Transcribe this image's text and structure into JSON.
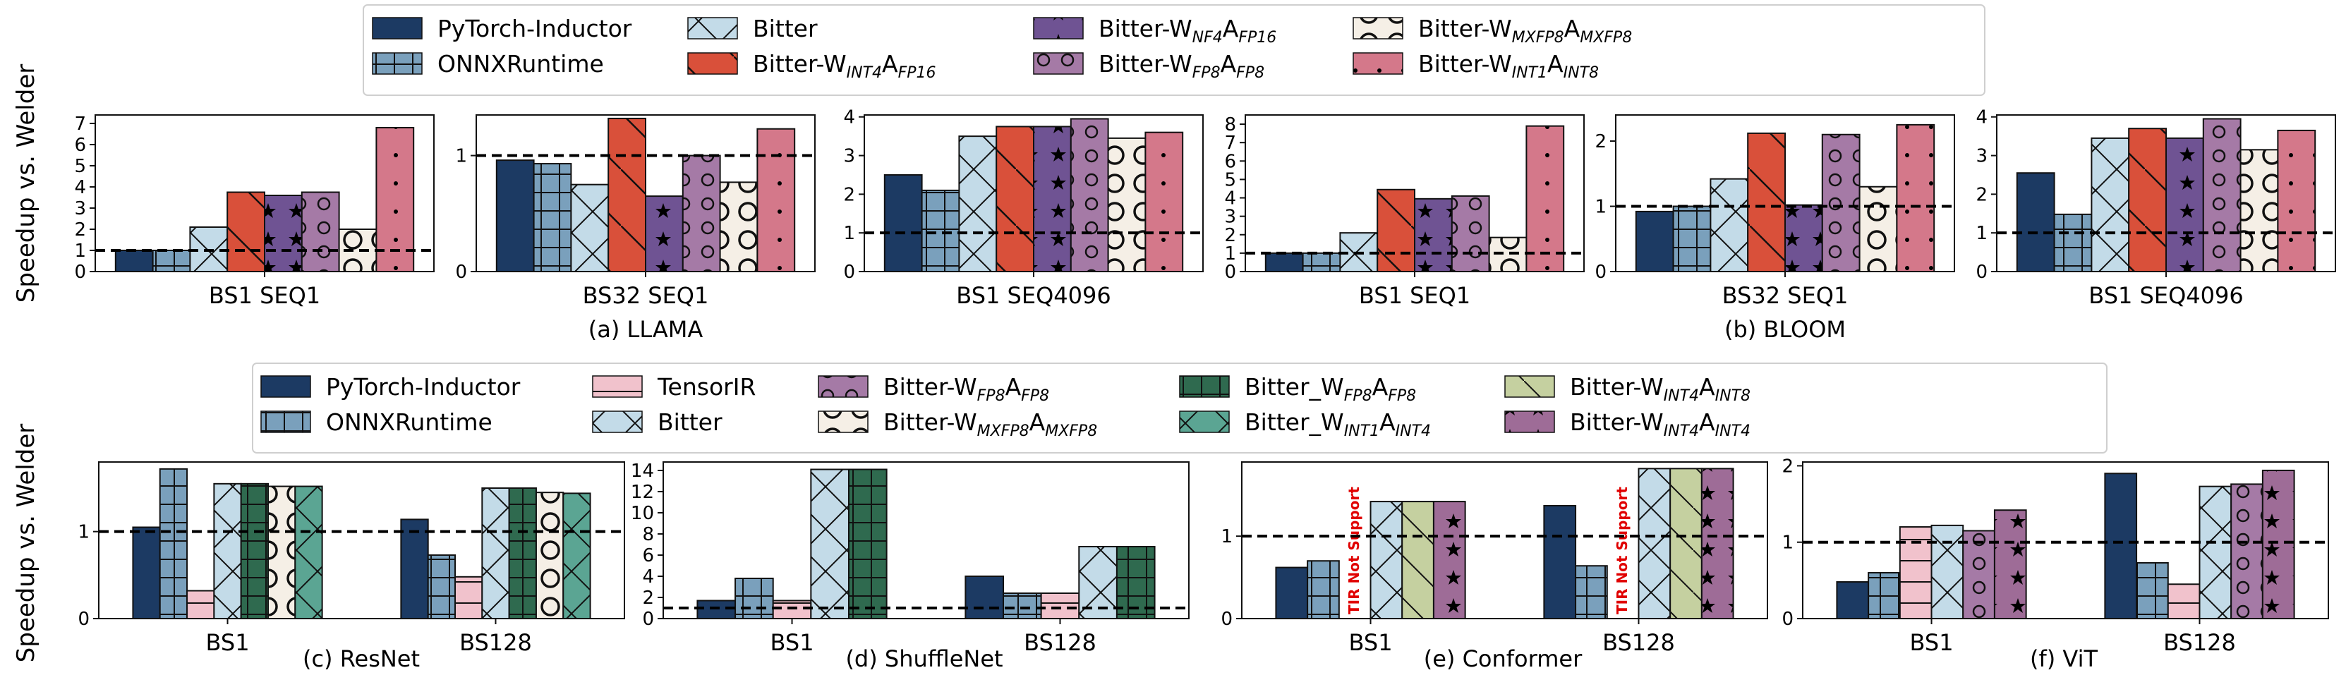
{
  "colors": {
    "pytorch": "#1c3a63",
    "onnx": "#7aa0bc",
    "tensorir": "#f1c2cc",
    "bitter": "#c3dbe8",
    "int4_fp16": "#d9503a",
    "nf4": "#6f5393",
    "fp8": "#a57aa6",
    "mxfp8": "#f5efe6",
    "int1_int8": "#d4788a",
    "fp8_green": "#2f6a4f",
    "int1_int4": "#5ba593",
    "int4_int8": "#c5d0a0",
    "int4_int4": "#9e6c97",
    "tir_text": "#e00000"
  },
  "ylabel_top": "Speedup vs. Welder",
  "ylabel_bottom": "Speedup vs. Welder",
  "top_legend": [
    {
      "key": "pytorch",
      "base": "PyTorch-Inductor",
      "sub": "",
      "mid": "",
      "sub2": ""
    },
    {
      "key": "onnx",
      "base": "ONNXRuntime",
      "sub": "",
      "mid": "",
      "sub2": ""
    },
    {
      "key": "bitter",
      "base": "Bitter",
      "sub": "",
      "mid": "",
      "sub2": ""
    },
    {
      "key": "int4_fp16",
      "base": "Bitter-W",
      "sub": "INT4",
      "mid": "A",
      "sub2": "FP16"
    },
    {
      "key": "nf4",
      "base": "Bitter-W",
      "sub": "NF4",
      "mid": "A",
      "sub2": "FP16"
    },
    {
      "key": "fp8",
      "base": "Bitter-W",
      "sub": "FP8",
      "mid": "A",
      "sub2": "FP8"
    },
    {
      "key": "mxfp8",
      "base": "Bitter-W",
      "sub": "MXFP8",
      "mid": "A",
      "sub2": "MXFP8"
    },
    {
      "key": "int1_int8",
      "base": "Bitter-W",
      "sub": "INT1",
      "mid": "A",
      "sub2": "INT8"
    }
  ],
  "bottom_legend": [
    {
      "key": "pytorch",
      "base": "PyTorch-Inductor",
      "sub": "",
      "mid": "",
      "sub2": ""
    },
    {
      "key": "onnx",
      "base": "ONNXRuntime",
      "sub": "",
      "mid": "",
      "sub2": ""
    },
    {
      "key": "tensorir",
      "base": "TensorIR",
      "sub": "",
      "mid": "",
      "sub2": ""
    },
    {
      "key": "bitter",
      "base": "Bitter",
      "sub": "",
      "mid": "",
      "sub2": ""
    },
    {
      "key": "fp8",
      "base": "Bitter-W",
      "sub": "FP8",
      "mid": "A",
      "sub2": "FP8"
    },
    {
      "key": "mxfp8",
      "base": "Bitter-W",
      "sub": "MXFP8",
      "mid": "A",
      "sub2": "MXFP8"
    },
    {
      "key": "fp8_green",
      "base": "Bitter_W",
      "sub": "FP8",
      "mid": "A",
      "sub2": "FP8"
    },
    {
      "key": "int1_int4",
      "base": "Bitter_W",
      "sub": "INT1",
      "mid": "A",
      "sub2": "INT4"
    },
    {
      "key": "int4_int8",
      "base": "Bitter-W",
      "sub": "INT4",
      "mid": "A",
      "sub2": "INT8"
    },
    {
      "key": "int4_int4",
      "base": "Bitter-W",
      "sub": "INT4",
      "mid": "A",
      "sub2": "INT4"
    }
  ],
  "chart_data": [
    {
      "type": "bar",
      "id": "a1",
      "xlabel": "BS1 SEQ1",
      "ylim": [
        0,
        7.4
      ],
      "yticks": [
        0,
        1,
        2,
        3,
        4,
        5,
        6,
        7
      ],
      "categories": [
        "BS1 SEQ1"
      ],
      "series": [
        {
          "key": "pytorch",
          "values": [
            1.0
          ]
        },
        {
          "key": "onnx",
          "values": [
            1.0
          ]
        },
        {
          "key": "bitter",
          "values": [
            2.1
          ]
        },
        {
          "key": "int4_fp16",
          "values": [
            3.75
          ]
        },
        {
          "key": "nf4",
          "values": [
            3.6
          ]
        },
        {
          "key": "fp8",
          "values": [
            3.75
          ]
        },
        {
          "key": "mxfp8",
          "values": [
            2.0
          ]
        },
        {
          "key": "int1_int8",
          "values": [
            6.8
          ]
        }
      ]
    },
    {
      "type": "bar",
      "id": "a2",
      "xlabel": "BS32 SEQ1",
      "title": "(a) LLAMA",
      "ylim": [
        0,
        1.35
      ],
      "yticks": [
        0,
        1
      ],
      "categories": [
        "BS32 SEQ1"
      ],
      "series": [
        {
          "key": "pytorch",
          "values": [
            0.96
          ]
        },
        {
          "key": "onnx",
          "values": [
            0.93
          ]
        },
        {
          "key": "bitter",
          "values": [
            0.75
          ]
        },
        {
          "key": "int4_fp16",
          "values": [
            1.32
          ]
        },
        {
          "key": "nf4",
          "values": [
            0.65
          ]
        },
        {
          "key": "fp8",
          "values": [
            1.0
          ]
        },
        {
          "key": "mxfp8",
          "values": [
            0.77
          ]
        },
        {
          "key": "int1_int8",
          "values": [
            1.23
          ]
        }
      ]
    },
    {
      "type": "bar",
      "id": "a3",
      "xlabel": "BS1 SEQ4096",
      "ylim": [
        0,
        4.05
      ],
      "yticks": [
        0,
        1,
        2,
        3,
        4
      ],
      "categories": [
        "BS1 SEQ4096"
      ],
      "series": [
        {
          "key": "pytorch",
          "values": [
            2.5
          ]
        },
        {
          "key": "onnx",
          "values": [
            2.1
          ]
        },
        {
          "key": "bitter",
          "values": [
            3.5
          ]
        },
        {
          "key": "int4_fp16",
          "values": [
            3.75
          ]
        },
        {
          "key": "nf4",
          "values": [
            3.75
          ]
        },
        {
          "key": "fp8",
          "values": [
            3.95
          ]
        },
        {
          "key": "mxfp8",
          "values": [
            3.45
          ]
        },
        {
          "key": "int1_int8",
          "values": [
            3.6
          ]
        }
      ]
    },
    {
      "type": "bar",
      "id": "b1",
      "xlabel": "BS1 SEQ1",
      "ylim": [
        0,
        8.5
      ],
      "yticks": [
        0,
        1,
        2,
        3,
        4,
        5,
        6,
        7,
        8
      ],
      "categories": [
        "BS1 SEQ1"
      ],
      "series": [
        {
          "key": "pytorch",
          "values": [
            1.0
          ]
        },
        {
          "key": "onnx",
          "values": [
            1.0
          ]
        },
        {
          "key": "bitter",
          "values": [
            2.1
          ]
        },
        {
          "key": "int4_fp16",
          "values": [
            4.45
          ]
        },
        {
          "key": "nf4",
          "values": [
            3.95
          ]
        },
        {
          "key": "fp8",
          "values": [
            4.1
          ]
        },
        {
          "key": "mxfp8",
          "values": [
            1.85
          ]
        },
        {
          "key": "int1_int8",
          "values": [
            7.9
          ]
        }
      ]
    },
    {
      "type": "bar",
      "id": "b2",
      "xlabel": "BS32 SEQ1",
      "title": "(b) BLOOM",
      "ylim": [
        0,
        2.4
      ],
      "yticks": [
        0,
        1,
        2
      ],
      "categories": [
        "BS32 SEQ1"
      ],
      "series": [
        {
          "key": "pytorch",
          "values": [
            0.92
          ]
        },
        {
          "key": "onnx",
          "values": [
            1.0
          ]
        },
        {
          "key": "bitter",
          "values": [
            1.42
          ]
        },
        {
          "key": "int4_fp16",
          "values": [
            2.12
          ]
        },
        {
          "key": "nf4",
          "values": [
            1.02
          ]
        },
        {
          "key": "fp8",
          "values": [
            2.1
          ]
        },
        {
          "key": "mxfp8",
          "values": [
            1.3
          ]
        },
        {
          "key": "int1_int8",
          "values": [
            2.25
          ]
        }
      ]
    },
    {
      "type": "bar",
      "id": "b3",
      "xlabel": "BS1 SEQ4096",
      "ylim": [
        0,
        4.05
      ],
      "yticks": [
        0,
        1,
        2,
        3,
        4
      ],
      "categories": [
        "BS1 SEQ4096"
      ],
      "series": [
        {
          "key": "pytorch",
          "values": [
            2.55
          ]
        },
        {
          "key": "onnx",
          "values": [
            1.48
          ]
        },
        {
          "key": "bitter",
          "values": [
            3.45
          ]
        },
        {
          "key": "int4_fp16",
          "values": [
            3.7
          ]
        },
        {
          "key": "nf4",
          "values": [
            3.45
          ]
        },
        {
          "key": "fp8",
          "values": [
            3.95
          ]
        },
        {
          "key": "mxfp8",
          "values": [
            3.15
          ]
        },
        {
          "key": "int1_int8",
          "values": [
            3.65
          ]
        }
      ]
    },
    {
      "type": "bar",
      "id": "c",
      "title": "(c) ResNet",
      "ylim": [
        0,
        1.8
      ],
      "yticks": [
        0,
        1
      ],
      "categories": [
        "BS1",
        "BS128"
      ],
      "series": [
        {
          "key": "pytorch",
          "values": [
            1.05,
            1.14
          ]
        },
        {
          "key": "onnx",
          "values": [
            1.72,
            0.73
          ]
        },
        {
          "key": "tensorir",
          "values": [
            0.32,
            0.48
          ]
        },
        {
          "key": "bitter",
          "values": [
            1.55,
            1.5
          ]
        },
        {
          "key": "fp8_green",
          "values": [
            1.55,
            1.5
          ]
        },
        {
          "key": "mxfp8",
          "values": [
            1.52,
            1.45
          ]
        },
        {
          "key": "int1_int4",
          "values": [
            1.52,
            1.44
          ]
        }
      ]
    },
    {
      "type": "bar",
      "id": "d",
      "title": "(d) ShuffleNet",
      "ylim": [
        0,
        14.8
      ],
      "yticks": [
        0,
        2,
        4,
        6,
        8,
        10,
        12,
        14
      ],
      "categories": [
        "BS1",
        "BS128"
      ],
      "series": [
        {
          "key": "pytorch",
          "values": [
            1.7,
            4.0
          ]
        },
        {
          "key": "onnx",
          "values": [
            3.8,
            2.4
          ]
        },
        {
          "key": "tensorir",
          "values": [
            1.7,
            2.4
          ]
        },
        {
          "key": "bitter",
          "values": [
            14.1,
            6.8
          ]
        },
        {
          "key": "fp8_green",
          "values": [
            14.1,
            6.8
          ]
        }
      ]
    },
    {
      "type": "bar",
      "id": "e",
      "title": "(e) Conformer",
      "ylim": [
        0,
        1.9
      ],
      "yticks": [
        0,
        1
      ],
      "categories": [
        "BS1",
        "BS128"
      ],
      "annotation": "TIR Not Support",
      "series": [
        {
          "key": "pytorch",
          "values": [
            0.62,
            1.37
          ]
        },
        {
          "key": "onnx",
          "values": [
            0.7,
            0.64
          ]
        },
        {
          "key": "tensorir",
          "values": [
            0,
            0
          ]
        },
        {
          "key": "bitter",
          "values": [
            1.42,
            1.82
          ]
        },
        {
          "key": "int4_int8",
          "values": [
            1.42,
            1.82
          ]
        },
        {
          "key": "int4_int4",
          "values": [
            1.42,
            1.82
          ]
        }
      ]
    },
    {
      "type": "bar",
      "id": "f",
      "title": "(f) ViT",
      "ylim": [
        0,
        2.05
      ],
      "yticks": [
        0,
        1,
        2
      ],
      "categories": [
        "BS1",
        "BS128"
      ],
      "series": [
        {
          "key": "pytorch",
          "values": [
            0.48,
            1.9
          ]
        },
        {
          "key": "onnx",
          "values": [
            0.6,
            0.73
          ]
        },
        {
          "key": "tensorir",
          "values": [
            1.2,
            0.45
          ]
        },
        {
          "key": "bitter",
          "values": [
            1.22,
            1.73
          ]
        },
        {
          "key": "fp8",
          "values": [
            1.15,
            1.76
          ]
        },
        {
          "key": "int4_int4",
          "values": [
            1.42,
            1.94
          ]
        }
      ]
    }
  ]
}
